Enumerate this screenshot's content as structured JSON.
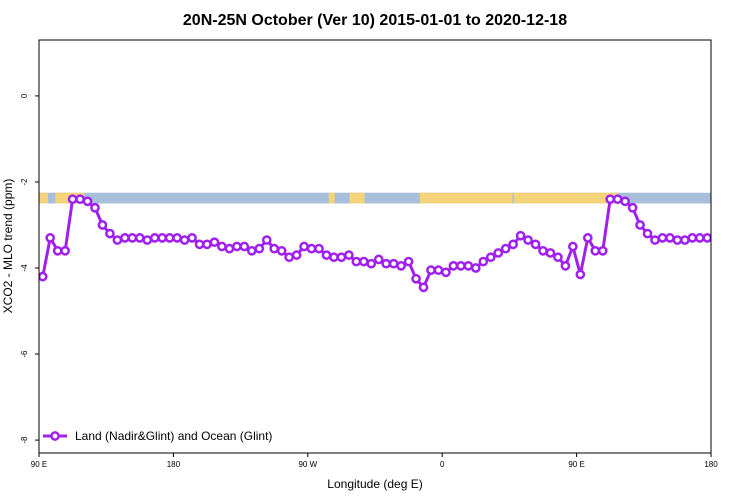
{
  "chart_data": {
    "type": "line",
    "title": "20N-25N October (Ver 10)   2015-01-01 to 2020-12-18",
    "xlabel": "Longitude (deg E)",
    "ylabel": "XCO2 - MLO trend (ppm)",
    "x_ticks": [
      {
        "value": 90,
        "label": "90 E"
      },
      {
        "value": 180,
        "label": "180"
      },
      {
        "value": 270,
        "label": "90 W"
      },
      {
        "value": 360,
        "label": "0"
      },
      {
        "value": 450,
        "label": "90 E"
      },
      {
        "value": 540,
        "label": "180"
      }
    ],
    "y_ticks": [
      {
        "value": 0,
        "label": "0"
      },
      {
        "value": -2,
        "label": "-2"
      },
      {
        "value": -4,
        "label": "-4"
      },
      {
        "value": -6,
        "label": "-6"
      },
      {
        "value": -8,
        "label": "-8"
      }
    ],
    "xlim": [
      90,
      540
    ],
    "ylim": [
      -8.3,
      1.3
    ],
    "series": [
      {
        "name": "Land (Nadir&Glint) and Ocean (Glint)",
        "color": "#a020f0",
        "x": [
          92.5,
          97.5,
          102.5,
          107.5,
          112.5,
          117.5,
          122.5,
          127.5,
          132.5,
          137.5,
          142.5,
          147.5,
          152.5,
          157.5,
          162.5,
          167.5,
          172.5,
          177.5,
          182.5,
          187.5,
          192.5,
          197.5,
          202.5,
          207.5,
          212.5,
          217.5,
          222.5,
          227.5,
          232.5,
          237.5,
          242.5,
          247.5,
          252.5,
          257.5,
          262.5,
          267.5,
          272.5,
          277.5,
          282.5,
          287.5,
          292.5,
          297.5,
          302.5,
          307.5,
          312.5,
          317.5,
          322.5,
          327.5,
          332.5,
          337.5,
          342.5,
          347.5,
          352.5,
          357.5,
          362.5,
          367.5,
          372.5,
          377.5,
          382.5,
          387.5,
          392.5,
          397.5,
          402.5,
          407.5,
          412.5,
          417.5,
          422.5,
          427.5,
          432.5,
          437.5,
          442.5,
          447.5,
          452.5,
          457.5,
          462.5,
          467.5,
          472.5,
          477.5,
          482.5,
          487.5,
          492.5,
          497.5,
          502.5,
          507.5,
          512.5,
          517.5,
          522.5,
          527.5,
          532.5,
          537.5
        ],
        "values": [
          -4.2,
          -3.3,
          -3.6,
          -3.6,
          -2.4,
          -2.4,
          -2.45,
          -2.6,
          -3.0,
          -3.2,
          -3.35,
          -3.3,
          -3.3,
          -3.3,
          -3.35,
          -3.3,
          -3.3,
          -3.3,
          -3.3,
          -3.35,
          -3.3,
          -3.45,
          -3.45,
          -3.4,
          -3.5,
          -3.55,
          -3.5,
          -3.5,
          -3.6,
          -3.55,
          -3.35,
          -3.55,
          -3.6,
          -3.75,
          -3.7,
          -3.5,
          -3.55,
          -3.55,
          -3.7,
          -3.75,
          -3.75,
          -3.7,
          -3.85,
          -3.85,
          -3.9,
          -3.8,
          -3.9,
          -3.9,
          -3.95,
          -3.85,
          -4.25,
          -4.45,
          -4.05,
          -4.05,
          -4.1,
          -3.95,
          -3.95,
          -3.95,
          -4.0,
          -3.85,
          -3.75,
          -3.65,
          -3.55,
          -3.45,
          -3.25,
          -3.35,
          -3.45,
          -3.6,
          -3.65,
          -3.75,
          -3.95,
          -3.5,
          -4.15,
          -3.3,
          -3.6,
          -3.6,
          -2.4,
          -2.4,
          -2.45,
          -2.6,
          -3.0,
          -3.2,
          -3.35,
          -3.3,
          -3.3,
          -3.35,
          -3.35,
          -3.3,
          -3.3,
          -3.3
        ]
      }
    ],
    "band": {
      "y_top": -2.25,
      "y_bottom": -2.5
    },
    "grid": false,
    "legend_position": "bottom-left"
  },
  "colors": {
    "ocean": "#a8bfdc",
    "land": "#f5d37a",
    "line": "#a020f0",
    "marker_fill": "#ffffff"
  }
}
